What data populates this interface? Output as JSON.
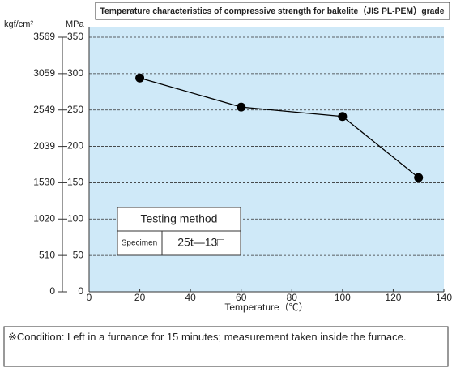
{
  "chart_data": {
    "type": "line",
    "title": "Temperature characteristics of compressive strength for bakelite（JIS PL-PEM）grade",
    "x_label": "Temperature（℃）",
    "y_label": "MPa",
    "y2_label": "kgf/cm²",
    "x": [
      20,
      60,
      100,
      130
    ],
    "series": [
      {
        "name": "Compressive strength",
        "color": "#000000",
        "values": [
          294,
          254,
          241,
          157
        ]
      }
    ],
    "xlim": [
      0,
      140
    ],
    "xticks": [
      0,
      20,
      40,
      60,
      80,
      100,
      120,
      140
    ],
    "ylim": [
      0,
      350
    ],
    "yticks": [
      0,
      50,
      100,
      150,
      200,
      250,
      300,
      350
    ],
    "y2lim": [
      0,
      3569
    ],
    "y2ticks": [
      0,
      510,
      1020,
      1530,
      2039,
      2549,
      3059,
      3569
    ],
    "grid": true,
    "inset_table": {
      "title": "Testing method",
      "rows": [
        [
          "Specimen",
          "25t—13□"
        ]
      ]
    },
    "note": "※Condition: Left in a furnance for 15 minutes; measurement taken inside the furnace."
  }
}
